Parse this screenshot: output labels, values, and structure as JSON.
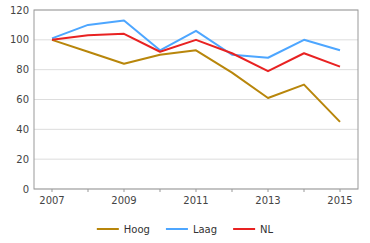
{
  "chart_data": {
    "type": "line",
    "categories": [
      "2007",
      null,
      "2009",
      null,
      "2011",
      null,
      "2013",
      null,
      "2015"
    ],
    "series": [
      {
        "name": "Hoog",
        "color": "#b8860b",
        "values": [
          100,
          92,
          84,
          90,
          93,
          78,
          61,
          70,
          45
        ]
      },
      {
        "name": "Laag",
        "color": "#4da6ff",
        "values": [
          101,
          110,
          113,
          93,
          106,
          90,
          88,
          100,
          93
        ]
      },
      {
        "name": "NL",
        "color": "#e82222",
        "values": [
          100,
          103,
          104,
          92,
          100,
          91,
          79,
          91,
          82
        ]
      }
    ],
    "ylim": [
      0,
      120
    ],
    "yticks": [
      0,
      20,
      40,
      60,
      80,
      100,
      120
    ],
    "grid": true,
    "legend": "bottom"
  }
}
